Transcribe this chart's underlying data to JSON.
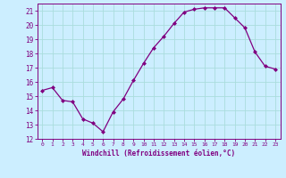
{
  "x": [
    0,
    1,
    2,
    3,
    4,
    5,
    6,
    7,
    8,
    9,
    10,
    11,
    12,
    13,
    14,
    15,
    16,
    17,
    18,
    19,
    20,
    21,
    22,
    23
  ],
  "y": [
    15.4,
    15.6,
    14.7,
    14.6,
    13.4,
    13.1,
    12.5,
    13.9,
    14.8,
    16.1,
    17.3,
    18.4,
    19.2,
    20.1,
    20.9,
    21.1,
    21.2,
    21.2,
    21.2,
    20.5,
    19.8,
    18.1,
    17.1,
    16.9
  ],
  "line_color": "#800080",
  "marker": "D",
  "marker_size": 2,
  "bg_color": "#cceeff",
  "grid_color": "#aadddd",
  "xlabel": "Windchill (Refroidissement éolien,°C)",
  "ylim": [
    12,
    21.5
  ],
  "xlim": [
    -0.5,
    23.5
  ],
  "yticks": [
    12,
    13,
    14,
    15,
    16,
    17,
    18,
    19,
    20,
    21
  ],
  "xticks": [
    0,
    1,
    2,
    3,
    4,
    5,
    6,
    7,
    8,
    9,
    10,
    11,
    12,
    13,
    14,
    15,
    16,
    17,
    18,
    19,
    20,
    21,
    22,
    23
  ],
  "tick_color": "#800080",
  "label_color": "#800080",
  "xlabel_fontsize": 5.5,
  "xtick_fontsize": 4.5,
  "ytick_fontsize": 5.5
}
